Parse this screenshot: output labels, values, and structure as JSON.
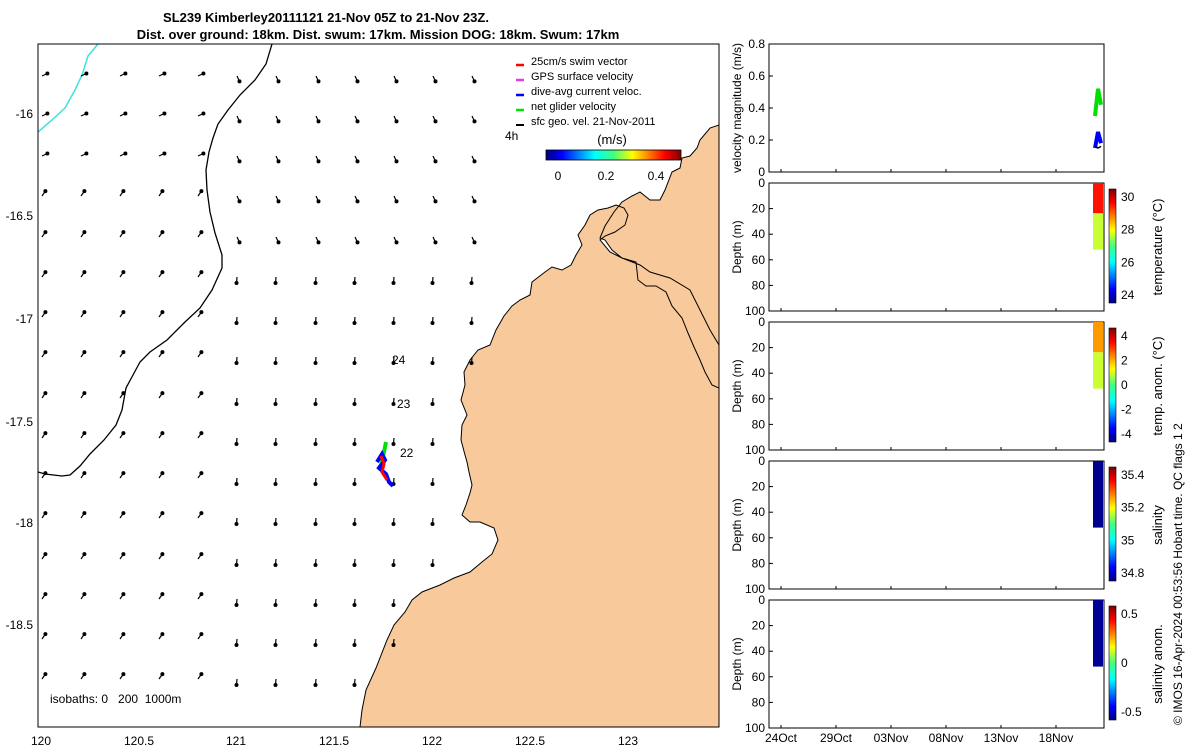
{
  "title": {
    "line1": "SL239 Kimberley20111121 21-Nov 05Z to 21-Nov 23Z.",
    "line2": "Dist. over ground: 18km. Dist. swum: 17km. Mission DOG: 18km. Swum: 17km"
  },
  "colors": {
    "land": "#f8c99a",
    "swim_vector": "#ff0000",
    "gps_velocity": "#e040e0",
    "dive_avg": "#0000ff",
    "net_velocity": "#00e000",
    "sfc_geo": "#000000",
    "isobath_1000": "#40e0e0"
  },
  "map": {
    "legend": [
      {
        "label": "25cm/s swim vector",
        "color": "#ff0000"
      },
      {
        "label": "GPS surface velocity",
        "color": "#e040e0"
      },
      {
        "label": "dive-avg current veloc.",
        "color": "#0000ff"
      },
      {
        "label": "net glider velocity",
        "color": "#00e000"
      },
      {
        "label": "sfc geo. vel. 21-Nov-2011",
        "color": "#000000"
      }
    ],
    "duration_label": "4h",
    "colorbar": {
      "label": "(m/s)",
      "ticks": [
        "0",
        "0.2",
        "0.4"
      ],
      "range": [
        0,
        0.5
      ]
    },
    "isobaths_label": "isobaths: 0   200  1000m",
    "date_labels": [
      {
        "text": "24",
        "lon": 121.81,
        "lat": -17.2
      },
      {
        "text": "23",
        "lon": 121.82,
        "lat": -17.42
      },
      {
        "text": "22",
        "lon": 121.84,
        "lat": -17.66
      }
    ],
    "x_ticks": [
      "120",
      "120.5",
      "121",
      "121.5",
      "122",
      "122.5",
      "123"
    ],
    "y_ticks": [
      "-16",
      "-16.5",
      "-17",
      "-17.5",
      "-18",
      "-18.5"
    ]
  },
  "panels": [
    {
      "id": "velocity",
      "ylabel": "velocity magnitude (m/s)",
      "y_ticks": [
        "0",
        "0.2",
        "0.4",
        "0.6",
        "0.8"
      ]
    },
    {
      "id": "temperature",
      "ylabel": "Depth (m)",
      "y_ticks": [
        "0",
        "20",
        "40",
        "60",
        "80",
        "100"
      ],
      "cb_label": "temperature (°C)",
      "cb_ticks": [
        "30",
        "28",
        "26",
        "24"
      ]
    },
    {
      "id": "temp_anom",
      "ylabel": "Depth (m)",
      "y_ticks": [
        "0",
        "20",
        "40",
        "60",
        "80",
        "100"
      ],
      "cb_label": "temp. anom. (°C)",
      "cb_ticks": [
        "4",
        "2",
        "0",
        "-2",
        "-4"
      ]
    },
    {
      "id": "salinity",
      "ylabel": "Depth (m)",
      "y_ticks": [
        "0",
        "20",
        "40",
        "60",
        "80",
        "100"
      ],
      "cb_label": "salinity",
      "cb_ticks": [
        "35.4",
        "35.2",
        "35",
        "34.8"
      ]
    },
    {
      "id": "sal_anom",
      "ylabel": "Depth (m)",
      "y_ticks": [
        "0",
        "20",
        "40",
        "60",
        "80",
        "100"
      ],
      "cb_label": "salinity anom.",
      "cb_ticks": [
        "0.5",
        "0",
        "-0.5"
      ]
    }
  ],
  "time_ticks": [
    "24Oct",
    "29Oct",
    "03Nov",
    "08Nov",
    "13Nov",
    "18Nov"
  ],
  "footer": "© IMOS 16-Apr-2024 00:53:56 Hobart time. QC flags 1  2",
  "chart_data": [
    {
      "type": "scatter",
      "title": "SL239 Kimberley20111121 21-Nov 05Z to 21-Nov 23Z.",
      "xlabel": "longitude",
      "ylabel": "latitude",
      "xlim": [
        119.97,
        123.45
      ],
      "ylim": [
        -18.98,
        -15.68
      ],
      "series": [
        {
          "name": "glider track",
          "x": [
            121.73,
            121.72,
            121.74,
            121.76,
            121.78
          ],
          "y": [
            -17.62,
            -17.68,
            -17.72,
            -17.76,
            -17.8
          ]
        }
      ]
    },
    {
      "type": "line",
      "ylabel": "velocity magnitude (m/s)",
      "ylim": [
        0,
        0.8
      ],
      "x_ticks": [
        "24Oct",
        "29Oct",
        "03Nov",
        "08Nov",
        "13Nov",
        "18Nov"
      ],
      "series": [
        {
          "name": "net glider velocity",
          "values": [
            0.35,
            0.52,
            0.42
          ]
        },
        {
          "name": "dive-avg current",
          "values": [
            0.15,
            0.25,
            0.18
          ]
        },
        {
          "name": "sfc geo. vel.",
          "values": [
            0.16,
            0.15,
            0.16
          ]
        }
      ]
    },
    {
      "type": "heatmap",
      "name": "temperature",
      "ylim": [
        0,
        100
      ],
      "clim": [
        23.5,
        30.5
      ],
      "depth_range": [
        0,
        52
      ],
      "upper_value": 29.5,
      "lower_value": 27.5
    },
    {
      "type": "heatmap",
      "name": "temp. anom.",
      "ylim": [
        0,
        100
      ],
      "clim": [
        -4,
        4
      ],
      "depth_range": [
        0,
        52
      ],
      "upper_value": 1.8,
      "lower_value": 0.6
    },
    {
      "type": "heatmap",
      "name": "salinity",
      "ylim": [
        0,
        100
      ],
      "clim": [
        34.75,
        35.45
      ],
      "depth_range": [
        0,
        52
      ],
      "value": 34.76
    },
    {
      "type": "heatmap",
      "name": "salinity anom.",
      "ylim": [
        0,
        100
      ],
      "clim": [
        -0.5,
        0.5
      ],
      "depth_range": [
        0,
        52
      ],
      "value": -0.48
    }
  ]
}
